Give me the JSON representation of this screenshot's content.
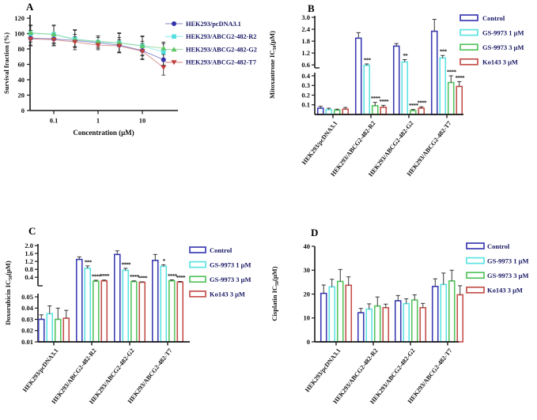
{
  "figure": {
    "background": "#ffffff"
  },
  "colors": {
    "axis": "#1a1a1a",
    "text": "#111111",
    "legend_text": "#181865",
    "control": "#3c3cb4",
    "gs9973_1uM": "#5fe3e3",
    "gs9973_3uM": "#56c45e",
    "ko143_3uM": "#c4504b"
  },
  "chart_data": [
    {
      "panel": "A",
      "type": "line",
      "xlabel": "Concentration (μM)",
      "ylabel": "Survival fraction (%)",
      "x": [
        0.03,
        0.1,
        0.3,
        1,
        3,
        10,
        30
      ],
      "x_tick_labels": [
        "0.1",
        "1",
        "10"
      ],
      "xscale": "log",
      "ylim": [
        0,
        120
      ],
      "y_ticks": [
        "0",
        "20",
        "40",
        "60",
        "80",
        "100",
        "120"
      ],
      "series": [
        {
          "name": "HEK293/pcDNA3.1",
          "marker": "circle",
          "color": "#3232aa",
          "values": [
            94,
            93,
            91,
            88,
            85,
            78,
            66
          ],
          "errors": [
            10,
            8,
            8,
            7,
            10,
            12,
            7
          ]
        },
        {
          "name": "HEK293/ABCG2-482-R2",
          "marker": "square",
          "color": "#52dede",
          "values": [
            100,
            99,
            93,
            89,
            88,
            84,
            76
          ],
          "errors": [
            11,
            12,
            11,
            8,
            13,
            13,
            11
          ]
        },
        {
          "name": "HEK293/ABCG2-482-G2",
          "marker": "triangle-up",
          "color": "#5ec463",
          "values": [
            101,
            99,
            92,
            90,
            88,
            84,
            81
          ],
          "errors": [
            9,
            11,
            13,
            7,
            12,
            12,
            8
          ]
        },
        {
          "name": "HEK293/ABCG2-482-T7",
          "marker": "triangle-down",
          "color": "#c0403c",
          "values": [
            93,
            92,
            89,
            85,
            84,
            77,
            56
          ],
          "errors": [
            8,
            8,
            7,
            6,
            8,
            10,
            10
          ]
        }
      ]
    },
    {
      "panel": "B",
      "type": "broken-bar",
      "ylabel": {
        "main": "Mitoxantrone IC",
        "sub": "50",
        "unit": "(μM)"
      },
      "categories": [
        "HEK293/pcDNA3.1",
        "HEK293/ABCG2-482-R2",
        "HEK293/ABCG2-482-G2",
        "HEK293/ABCG2-482-T7"
      ],
      "axis_upper": {
        "range": [
          0.45,
          3.0
        ],
        "ticks": [
          "0.6",
          "1.2",
          "1.8",
          "2.4",
          "3.0"
        ]
      },
      "axis_lower": {
        "range": [
          0,
          0.4
        ],
        "ticks": [
          "0.1",
          "0.2",
          "0.3",
          "0.4"
        ]
      },
      "series": [
        {
          "name": "Control",
          "color": "#3c3cb4",
          "values": [
            0.065,
            1.95,
            1.55,
            2.3
          ],
          "errors": [
            0.02,
            0.28,
            0.13,
            0.6
          ],
          "sig": [
            "",
            "",
            "",
            ""
          ]
        },
        {
          "name": "GS-9973 1 μM",
          "color": "#5fe3e3",
          "values": [
            0.05,
            0.58,
            0.75,
            0.95
          ],
          "errors": [
            0.015,
            0.07,
            0.12,
            0.13
          ],
          "sig": [
            "",
            "***",
            "**",
            "***"
          ]
        },
        {
          "name": "GS-9973 3 μM",
          "color": "#56c45e",
          "values": [
            0.045,
            0.09,
            0.04,
            0.33
          ],
          "errors": [
            0.01,
            0.035,
            0.012,
            0.07
          ],
          "sig": [
            "",
            "****",
            "****",
            "****"
          ]
        },
        {
          "name": "Ko143 3 μM",
          "color": "#c4504b",
          "values": [
            0.055,
            0.075,
            0.065,
            0.29
          ],
          "errors": [
            0.018,
            0.02,
            0.015,
            0.05
          ],
          "sig": [
            "",
            "****",
            "****",
            "****"
          ]
        }
      ]
    },
    {
      "panel": "C",
      "type": "broken-bar",
      "ylabel": {
        "main": "Doxorubicin IC",
        "sub": "50",
        "unit": "(μM)"
      },
      "categories": [
        "HEK293/pcDNA3.1",
        "HEK293/ABCG2-482-R2",
        "HEK293/ABCG2-482-G2",
        "HEK293/ABCG2-482-T7"
      ],
      "axis_upper": {
        "range": [
          0.05,
          2.0
        ],
        "ticks": [
          "0.4",
          "0.8",
          "1.2",
          "1.6",
          "2.0"
        ]
      },
      "axis_lower": {
        "range": [
          0.01,
          0.05
        ],
        "ticks": [
          "0.01",
          "0.02",
          "0.03",
          "0.04",
          "0.05"
        ]
      },
      "series": [
        {
          "name": "Control",
          "color": "#3c3cb4",
          "values": [
            0.03,
            1.3,
            1.55,
            1.25
          ],
          "errors": [
            0.004,
            0.13,
            0.18,
            0.3
          ],
          "sig": [
            "",
            "",
            "",
            ""
          ]
        },
        {
          "name": "GS-9973 1 μM",
          "color": "#5fe3e3",
          "values": [
            0.035,
            0.85,
            0.75,
            0.95
          ],
          "errors": [
            0.007,
            0.12,
            0.1,
            0.08
          ],
          "sig": [
            "",
            "***",
            "****",
            "*"
          ]
        },
        {
          "name": "GS-9973 3 μM",
          "color": "#56c45e",
          "values": [
            0.03,
            0.2,
            0.18,
            0.22
          ],
          "errors": [
            0.01,
            0.05,
            0.04,
            0.05
          ],
          "sig": [
            "",
            "****",
            "****",
            "****"
          ]
        },
        {
          "name": "Ko143 3 μM",
          "color": "#c4504b",
          "values": [
            0.031,
            0.22,
            0.15,
            0.16
          ],
          "errors": [
            0.007,
            0.04,
            0.02,
            0.03
          ],
          "sig": [
            "",
            "****",
            "****",
            "****"
          ]
        }
      ]
    },
    {
      "panel": "D",
      "type": "bar",
      "ylabel": {
        "main": "Cisplatin IC",
        "sub": "50",
        "unit": "(μM)"
      },
      "categories": [
        "HEK293/pcDNA3.1",
        "HEK293/ABCG2-482-R2",
        "HEK293/ABCG2-482-G2",
        "HEK293/ABCG2-482-T7"
      ],
      "ylim": [
        0,
        40
      ],
      "y_ticks": [
        "0",
        "10",
        "20",
        "30",
        "40"
      ],
      "series": [
        {
          "name": "Control",
          "color": "#3c3cb4",
          "values": [
            20.3,
            12.2,
            17.2,
            23.2
          ],
          "errors": [
            3.5,
            1.8,
            2.2,
            3.2
          ],
          "sig": [
            "",
            "",
            "",
            ""
          ]
        },
        {
          "name": "GS-9973 1 μM",
          "color": "#5fe3e3",
          "values": [
            23.0,
            13.7,
            16.0,
            24.0
          ],
          "errors": [
            3.2,
            2.2,
            2.0,
            4.8
          ],
          "sig": [
            "",
            "",
            "",
            ""
          ]
        },
        {
          "name": "GS-9973 3 μM",
          "color": "#56c45e",
          "values": [
            25.3,
            15.0,
            17.5,
            25.5
          ],
          "errors": [
            5.0,
            3.8,
            2.2,
            4.5
          ],
          "sig": [
            "",
            "",
            "",
            ""
          ]
        },
        {
          "name": "Ko143 3 μM",
          "color": "#c4504b",
          "values": [
            23.7,
            14.3,
            14.3,
            19.7
          ],
          "errors": [
            3.5,
            1.5,
            1.8,
            3.8
          ],
          "sig": [
            "",
            "",
            "",
            ""
          ]
        }
      ]
    }
  ]
}
